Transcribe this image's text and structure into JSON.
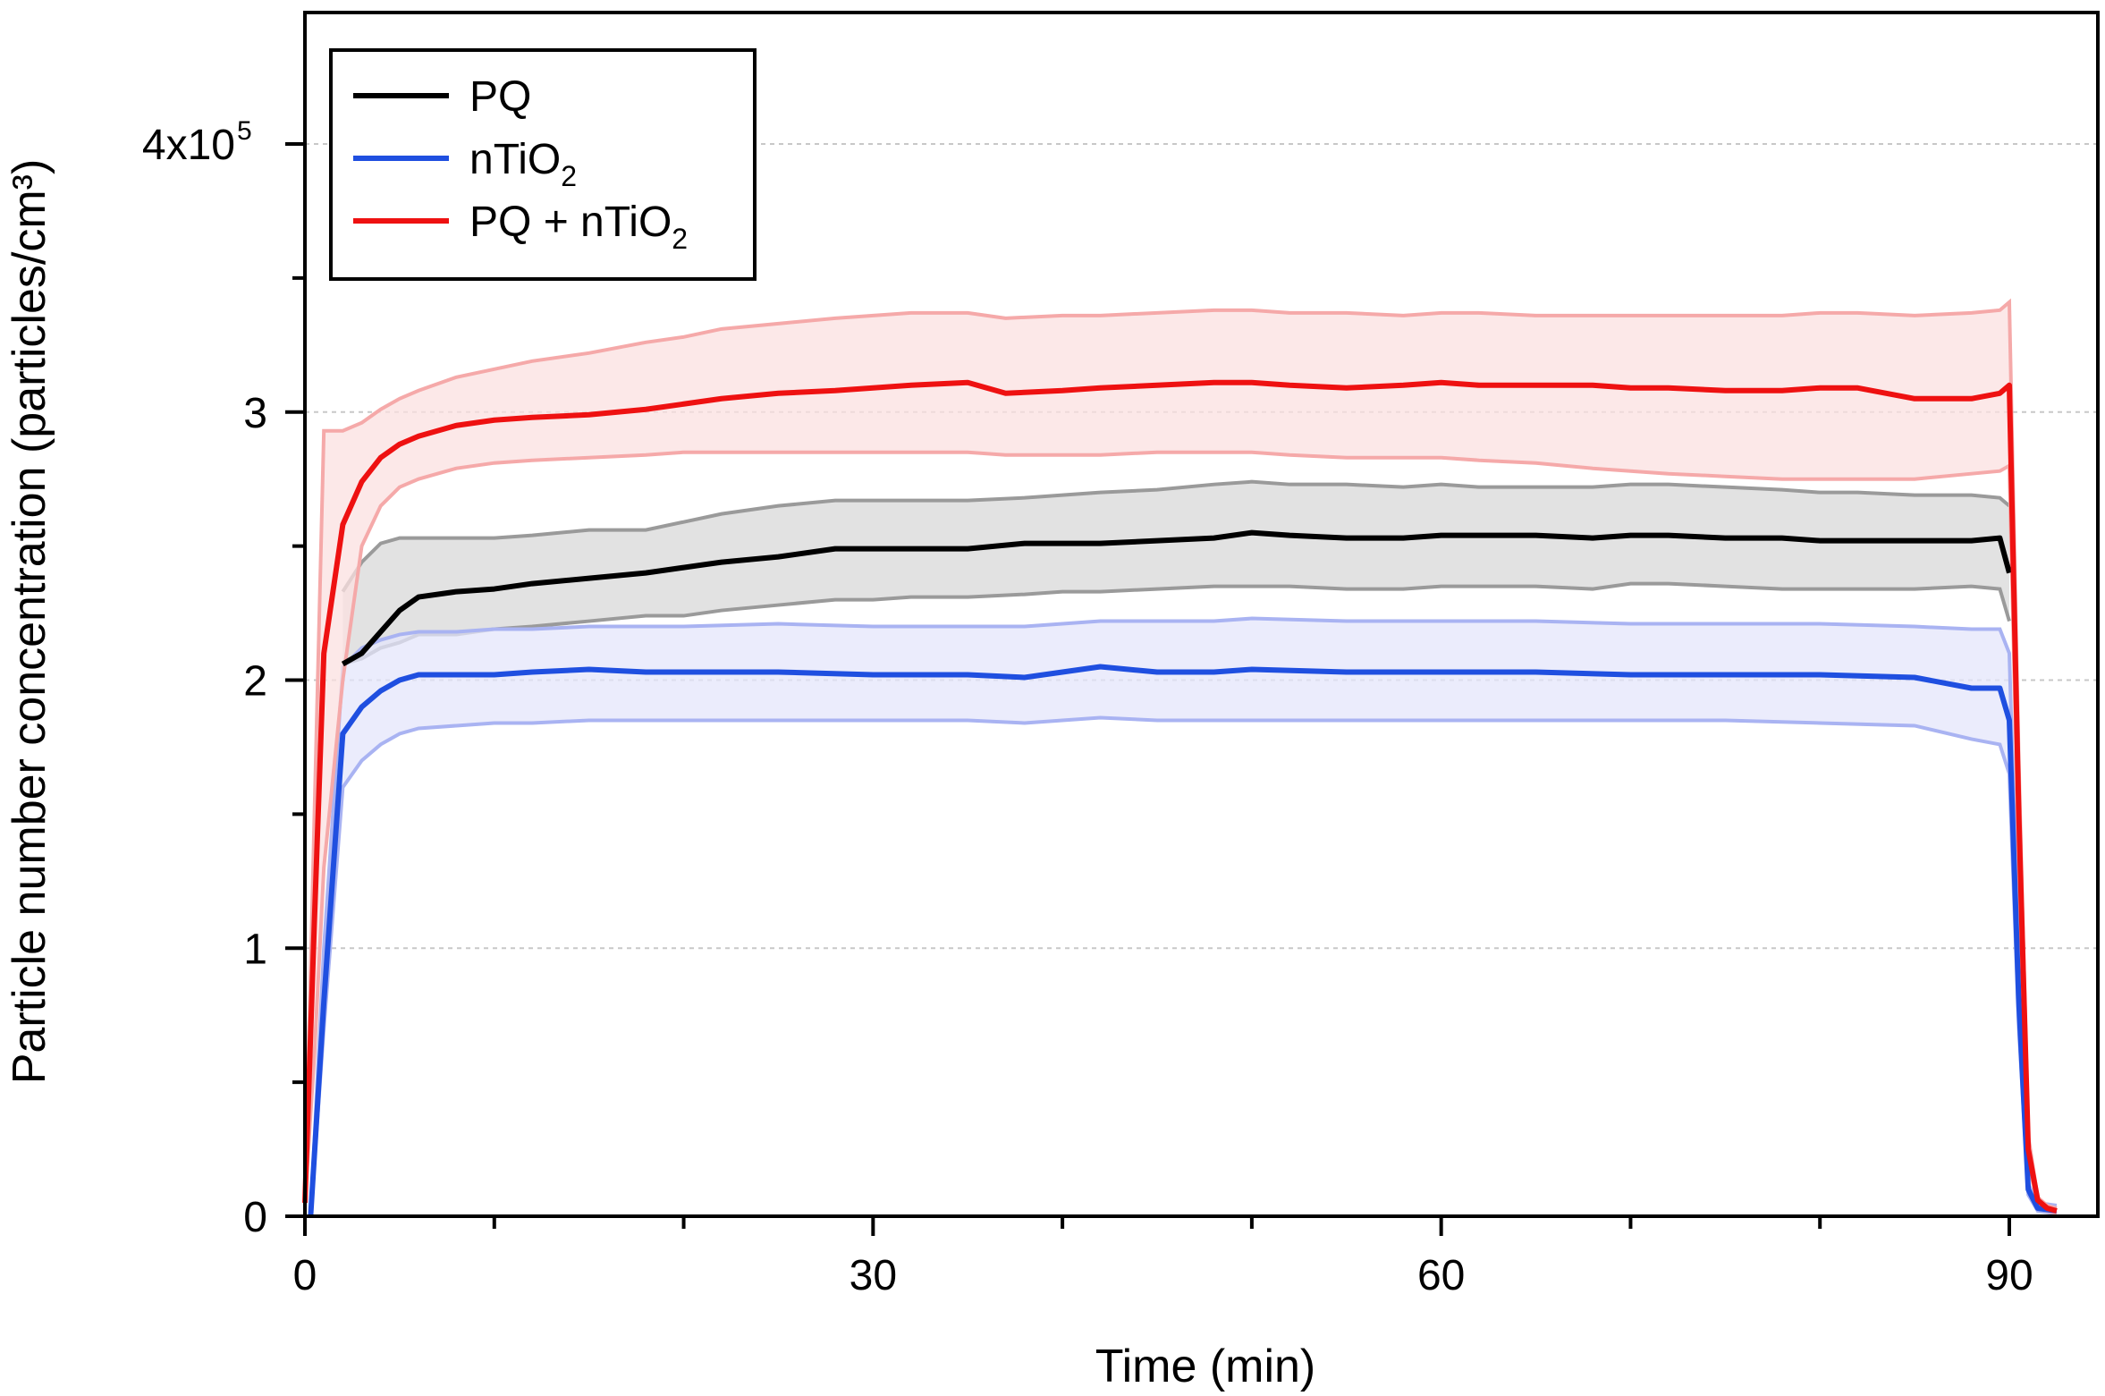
{
  "chart_data": {
    "type": "line",
    "xlabel": "Time (min)",
    "ylabel": "Particle number concentration (particles/cm³)",
    "xlim": [
      0,
      95
    ],
    "ylim": [
      0,
      450000
    ],
    "x_ticks": [
      0,
      30,
      60,
      90
    ],
    "x_tick_labels": [
      "0",
      "30",
      "60",
      "90"
    ],
    "x_minor_ticks": [
      10,
      20,
      40,
      50,
      70,
      80
    ],
    "y_ticks": [
      0,
      100000,
      200000,
      300000,
      400000
    ],
    "y_tick_labels": [
      "0",
      "1",
      "2",
      "3",
      "4x10"
    ],
    "y_tick_exponent": "5",
    "y_minor_ticks": [
      50000,
      150000,
      250000,
      350000
    ],
    "grid": "horizontal dashed at major y ticks",
    "legend_position": "top-left",
    "legend_entries": [
      {
        "base": "PQ",
        "sub": "",
        "suffix": ""
      },
      {
        "base": "nTiO",
        "sub": "2",
        "suffix": ""
      },
      {
        "base": "PQ + nTiO",
        "sub": "2",
        "suffix": ""
      }
    ],
    "series": [
      {
        "name": "PQ",
        "color": "#000000",
        "band_line_color": "#9a9a9a",
        "band_fill_color": "#d8d8d8",
        "x": [
          2,
          3,
          4,
          5,
          6,
          8,
          10,
          12,
          15,
          18,
          20,
          22,
          25,
          28,
          30,
          32,
          35,
          38,
          40,
          42,
          45,
          48,
          50,
          52,
          55,
          58,
          60,
          62,
          65,
          68,
          70,
          72,
          75,
          78,
          80,
          82,
          85,
          88,
          89.5,
          90
        ],
        "values": [
          206000,
          210000,
          218000,
          226000,
          231000,
          233000,
          234000,
          236000,
          238000,
          240000,
          242000,
          244000,
          246000,
          249000,
          249000,
          249000,
          249000,
          251000,
          251000,
          251000,
          252000,
          253000,
          255000,
          254000,
          253000,
          253000,
          254000,
          254000,
          254000,
          253000,
          254000,
          254000,
          253000,
          253000,
          252000,
          252000,
          252000,
          252000,
          253000,
          240000
        ],
        "upper": [
          233000,
          244000,
          251000,
          253000,
          253000,
          253000,
          253000,
          254000,
          256000,
          256000,
          259000,
          262000,
          265000,
          267000,
          267000,
          267000,
          267000,
          268000,
          269000,
          270000,
          271000,
          273000,
          274000,
          273000,
          273000,
          272000,
          273000,
          272000,
          272000,
          272000,
          273000,
          273000,
          272000,
          271000,
          270000,
          270000,
          269000,
          269000,
          268000,
          265000
        ],
        "lower": [
          206000,
          208000,
          212000,
          214000,
          217000,
          217000,
          219000,
          220000,
          222000,
          224000,
          224000,
          226000,
          228000,
          230000,
          230000,
          231000,
          231000,
          232000,
          233000,
          233000,
          234000,
          235000,
          235000,
          235000,
          234000,
          234000,
          235000,
          235000,
          235000,
          234000,
          236000,
          236000,
          235000,
          234000,
          234000,
          234000,
          234000,
          235000,
          234000,
          222000
        ]
      },
      {
        "name": "nTiO2",
        "color": "#1f4fe0",
        "band_line_color": "#a9b3f2",
        "band_fill_color": "#e4e6fb",
        "x": [
          0.3,
          1,
          2,
          3,
          4,
          5,
          6,
          8,
          10,
          12,
          15,
          18,
          20,
          25,
          30,
          35,
          38,
          40,
          42,
          45,
          48,
          50,
          55,
          60,
          65,
          70,
          75,
          80,
          85,
          88,
          89.5,
          90,
          90.5,
          91,
          91.5,
          92.5
        ],
        "values": [
          0,
          80000,
          180000,
          190000,
          196000,
          200000,
          202000,
          202000,
          202000,
          203000,
          204000,
          203000,
          203000,
          203000,
          202000,
          202000,
          201000,
          203000,
          205000,
          203000,
          203000,
          204000,
          203000,
          203000,
          203000,
          202000,
          202000,
          202000,
          201000,
          197000,
          197000,
          185000,
          80000,
          10000,
          3000,
          2000
        ],
        "upper": [
          0,
          100000,
          205000,
          212000,
          215000,
          217000,
          218000,
          218000,
          219000,
          219000,
          220000,
          220000,
          220000,
          221000,
          220000,
          220000,
          220000,
          221000,
          222000,
          222000,
          222000,
          223000,
          222000,
          222000,
          222000,
          221000,
          221000,
          221000,
          220000,
          219000,
          219000,
          210000,
          90000,
          12000,
          5000,
          4000
        ],
        "lower": [
          0,
          70000,
          160000,
          170000,
          176000,
          180000,
          182000,
          183000,
          184000,
          184000,
          185000,
          185000,
          185000,
          185000,
          185000,
          185000,
          184000,
          185000,
          186000,
          185000,
          185000,
          185000,
          185000,
          185000,
          185000,
          185000,
          185000,
          184000,
          183000,
          178000,
          176000,
          165000,
          70000,
          8000,
          2000,
          1000
        ]
      },
      {
        "name": "PQ + nTiO2",
        "color": "#ee1111",
        "band_line_color": "#f5a9a9",
        "band_fill_color": "#fbe0e0",
        "x": [
          0,
          0.5,
          1,
          2,
          3,
          4,
          5,
          6,
          8,
          10,
          12,
          15,
          18,
          20,
          22,
          25,
          28,
          30,
          32,
          35,
          37,
          40,
          42,
          45,
          48,
          50,
          52,
          55,
          58,
          60,
          62,
          65,
          68,
          70,
          72,
          75,
          78,
          80,
          82,
          85,
          88,
          89.5,
          90,
          90.5,
          91,
          91.5,
          92,
          92.5
        ],
        "values": [
          5000,
          110000,
          210000,
          258000,
          274000,
          283000,
          288000,
          291000,
          295000,
          297000,
          298000,
          299000,
          301000,
          303000,
          305000,
          307000,
          308000,
          309000,
          310000,
          311000,
          307000,
          308000,
          309000,
          310000,
          311000,
          311000,
          310000,
          309000,
          310000,
          311000,
          310000,
          310000,
          310000,
          309000,
          309000,
          308000,
          308000,
          309000,
          309000,
          305000,
          305000,
          307000,
          310000,
          150000,
          25000,
          6000,
          3000,
          2000
        ],
        "upper": [
          5000,
          150000,
          293000,
          293000,
          296000,
          301000,
          305000,
          308000,
          313000,
          316000,
          319000,
          322000,
          326000,
          328000,
          331000,
          333000,
          335000,
          336000,
          337000,
          337000,
          335000,
          336000,
          336000,
          337000,
          338000,
          338000,
          337000,
          337000,
          336000,
          337000,
          337000,
          336000,
          336000,
          336000,
          336000,
          336000,
          336000,
          337000,
          337000,
          336000,
          337000,
          338000,
          341000,
          170000,
          30000,
          7000,
          4000,
          3000
        ],
        "lower": [
          5000,
          60000,
          130000,
          200000,
          250000,
          265000,
          272000,
          275000,
          279000,
          281000,
          282000,
          283000,
          284000,
          285000,
          285000,
          285000,
          285000,
          285000,
          285000,
          285000,
          284000,
          284000,
          284000,
          285000,
          285000,
          285000,
          284000,
          283000,
          283000,
          283000,
          282000,
          281000,
          279000,
          278000,
          277000,
          276000,
          275000,
          275000,
          275000,
          275000,
          277000,
          278000,
          280000,
          130000,
          20000,
          5000,
          2000,
          1000
        ]
      }
    ]
  }
}
